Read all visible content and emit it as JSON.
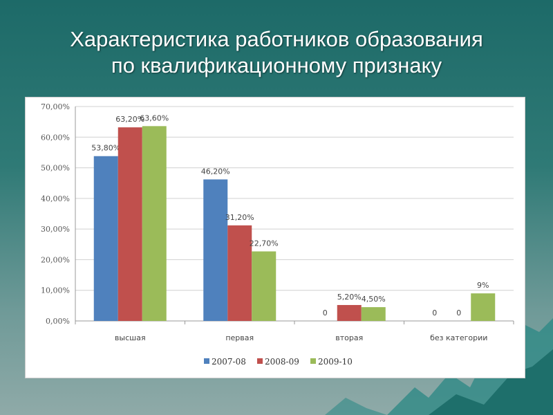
{
  "title_lines": [
    "Характеристика работников образования",
    "по квалификационному признаку"
  ],
  "chart_data": {
    "type": "bar",
    "title": "Характеристика работников образования по квалификационному признаку",
    "categories": [
      "высшая",
      "первая",
      "вторая",
      "без категории"
    ],
    "ylim": [
      0,
      70
    ],
    "yticks": [
      0,
      10,
      20,
      30,
      40,
      50,
      60,
      70
    ],
    "ytick_labels": [
      "0,00%",
      "10,00%",
      "20,00%",
      "30,00%",
      "40,00%",
      "50,00%",
      "60,00%",
      "70,00%"
    ],
    "grid": true,
    "legend_position": "bottom",
    "series": [
      {
        "name": "2007-08",
        "color": "#4f81bd",
        "values": [
          53.8,
          46.2,
          0,
          0
        ],
        "labels": [
          "53,80%",
          "46,20%",
          "0",
          "0"
        ]
      },
      {
        "name": "2008-09",
        "color": "#c0504d",
        "values": [
          63.2,
          31.2,
          5.2,
          0
        ],
        "labels": [
          "63,20%",
          "31,20%",
          "5,20%",
          "0"
        ]
      },
      {
        "name": "2009-10",
        "color": "#9bbb59",
        "values": [
          63.6,
          22.7,
          4.5,
          9
        ],
        "labels": [
          "63,60%",
          "22,70%",
          "4,50%",
          "9%"
        ]
      }
    ]
  }
}
